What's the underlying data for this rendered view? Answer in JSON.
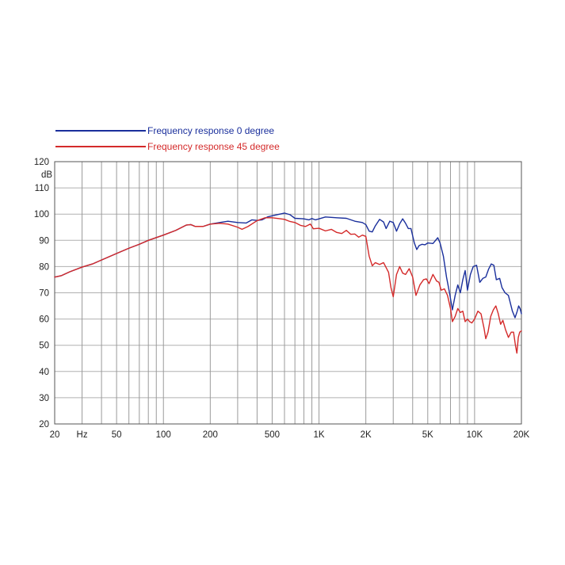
{
  "chart_data": {
    "type": "line",
    "title": "",
    "xlabel": "",
    "ylabel": "dB",
    "x_scale": "log",
    "xlim": [
      20,
      20000
    ],
    "ylim": [
      20,
      120
    ],
    "grid": true,
    "legend_position": "top-left",
    "y_ticks": [
      {
        "value": 20,
        "label": "20"
      },
      {
        "value": 30,
        "label": "30"
      },
      {
        "value": 40,
        "label": "40"
      },
      {
        "value": 50,
        "label": "50"
      },
      {
        "value": 60,
        "label": "60"
      },
      {
        "value": 70,
        "label": "70"
      },
      {
        "value": 80,
        "label": "80"
      },
      {
        "value": 90,
        "label": "90"
      },
      {
        "value": 100,
        "label": "100"
      },
      {
        "value": 110,
        "label": "110"
      },
      {
        "value": 120,
        "label": "120"
      }
    ],
    "x_ticks": [
      {
        "value": 20,
        "label": "20"
      },
      {
        "value": 30,
        "label": "Hz"
      },
      {
        "value": 50,
        "label": "50"
      },
      {
        "value": 100,
        "label": "100"
      },
      {
        "value": 200,
        "label": "200"
      },
      {
        "value": 500,
        "label": "500"
      },
      {
        "value": 1000,
        "label": "1K"
      },
      {
        "value": 2000,
        "label": "2K"
      },
      {
        "value": 5000,
        "label": "5K"
      },
      {
        "value": 10000,
        "label": "10K"
      },
      {
        "value": 20000,
        "label": "20K"
      }
    ],
    "x_gridlines": [
      20,
      30,
      40,
      50,
      60,
      70,
      80,
      90,
      100,
      200,
      300,
      400,
      500,
      600,
      700,
      800,
      900,
      1000,
      2000,
      3000,
      4000,
      5000,
      6000,
      7000,
      8000,
      9000,
      10000,
      20000
    ],
    "series": [
      {
        "name": "Frequency response 0 degree",
        "color": "#1a2f9c",
        "points": [
          [
            20,
            76
          ],
          [
            22,
            76.5
          ],
          [
            25,
            78
          ],
          [
            30,
            79.8
          ],
          [
            35,
            81
          ],
          [
            40,
            82.5
          ],
          [
            50,
            85
          ],
          [
            60,
            87
          ],
          [
            70,
            88.5
          ],
          [
            80,
            90
          ],
          [
            100,
            92
          ],
          [
            120,
            93.8
          ],
          [
            140,
            95.8
          ],
          [
            150,
            96
          ],
          [
            160,
            95.3
          ],
          [
            180,
            95.3
          ],
          [
            200,
            96.2
          ],
          [
            230,
            96.8
          ],
          [
            260,
            97.3
          ],
          [
            300,
            96.8
          ],
          [
            340,
            96.6
          ],
          [
            370,
            97.8
          ],
          [
            400,
            97.6
          ],
          [
            430,
            97.8
          ],
          [
            470,
            99
          ],
          [
            520,
            99.6
          ],
          [
            600,
            100.4
          ],
          [
            650,
            99.8
          ],
          [
            700,
            98.4
          ],
          [
            800,
            98.2
          ],
          [
            860,
            97.8
          ],
          [
            900,
            98.3
          ],
          [
            950,
            97.8
          ],
          [
            1000,
            98.2
          ],
          [
            1100,
            98.9
          ],
          [
            1300,
            98.6
          ],
          [
            1500,
            98.4
          ],
          [
            1700,
            97.3
          ],
          [
            1900,
            96.8
          ],
          [
            2000,
            96
          ],
          [
            2100,
            93.5
          ],
          [
            2200,
            93.2
          ],
          [
            2300,
            95.5
          ],
          [
            2450,
            98
          ],
          [
            2600,
            97
          ],
          [
            2700,
            94.5
          ],
          [
            2850,
            97.3
          ],
          [
            3000,
            96.8
          ],
          [
            3150,
            93.5
          ],
          [
            3300,
            96.3
          ],
          [
            3450,
            98.2
          ],
          [
            3600,
            96.5
          ],
          [
            3750,
            94.5
          ],
          [
            3900,
            94.5
          ],
          [
            4100,
            89
          ],
          [
            4250,
            86.5
          ],
          [
            4400,
            88
          ],
          [
            4600,
            88.5
          ],
          [
            4800,
            88.3
          ],
          [
            5000,
            89
          ],
          [
            5400,
            88.8
          ],
          [
            5800,
            91
          ],
          [
            6000,
            89
          ],
          [
            6300,
            84
          ],
          [
            6600,
            76
          ],
          [
            6900,
            70
          ],
          [
            7200,
            63.5
          ],
          [
            7500,
            69
          ],
          [
            7800,
            73
          ],
          [
            8100,
            70
          ],
          [
            8400,
            75
          ],
          [
            8700,
            78.5
          ],
          [
            9000,
            71
          ],
          [
            9400,
            77
          ],
          [
            9800,
            80
          ],
          [
            10300,
            80.5
          ],
          [
            10800,
            74
          ],
          [
            11300,
            75.5
          ],
          [
            11800,
            76
          ],
          [
            12300,
            79
          ],
          [
            12800,
            81
          ],
          [
            13300,
            80.5
          ],
          [
            13800,
            75
          ],
          [
            14500,
            75.5
          ],
          [
            15000,
            72
          ],
          [
            15700,
            70
          ],
          [
            16500,
            69
          ],
          [
            17500,
            63
          ],
          [
            18200,
            60.5
          ],
          [
            18800,
            63
          ],
          [
            19200,
            65
          ],
          [
            19600,
            64
          ],
          [
            20000,
            62
          ]
        ]
      },
      {
        "name": "Frequency response 45 degree",
        "color": "#d42a2a",
        "points": [
          [
            20,
            76
          ],
          [
            22,
            76.5
          ],
          [
            25,
            78
          ],
          [
            30,
            79.8
          ],
          [
            35,
            81
          ],
          [
            40,
            82.5
          ],
          [
            50,
            85
          ],
          [
            60,
            87
          ],
          [
            70,
            88.5
          ],
          [
            80,
            90
          ],
          [
            100,
            92
          ],
          [
            120,
            93.8
          ],
          [
            140,
            95.8
          ],
          [
            150,
            96
          ],
          [
            160,
            95.3
          ],
          [
            180,
            95.3
          ],
          [
            200,
            96.2
          ],
          [
            230,
            96.5
          ],
          [
            260,
            96.2
          ],
          [
            300,
            95
          ],
          [
            320,
            94.2
          ],
          [
            350,
            95.3
          ],
          [
            400,
            97.5
          ],
          [
            450,
            98.6
          ],
          [
            500,
            98.6
          ],
          [
            550,
            98.3
          ],
          [
            600,
            98
          ],
          [
            650,
            97.2
          ],
          [
            700,
            96.8
          ],
          [
            760,
            95.7
          ],
          [
            820,
            95.3
          ],
          [
            880,
            96.2
          ],
          [
            920,
            94.4
          ],
          [
            1000,
            94.6
          ],
          [
            1100,
            93.6
          ],
          [
            1200,
            94.2
          ],
          [
            1300,
            93
          ],
          [
            1400,
            92.6
          ],
          [
            1500,
            93.8
          ],
          [
            1600,
            92.3
          ],
          [
            1700,
            92.4
          ],
          [
            1800,
            91.2
          ],
          [
            1900,
            92
          ],
          [
            2000,
            91.5
          ],
          [
            2100,
            84
          ],
          [
            2200,
            80.3
          ],
          [
            2300,
            81.5
          ],
          [
            2450,
            80.8
          ],
          [
            2600,
            81.5
          ],
          [
            2800,
            77.8
          ],
          [
            2900,
            72
          ],
          [
            3000,
            68.5
          ],
          [
            3150,
            77
          ],
          [
            3300,
            80
          ],
          [
            3450,
            77.5
          ],
          [
            3600,
            77
          ],
          [
            3800,
            79.2
          ],
          [
            4000,
            76
          ],
          [
            4200,
            69
          ],
          [
            4450,
            73
          ],
          [
            4700,
            75
          ],
          [
            4900,
            75.3
          ],
          [
            5100,
            73.5
          ],
          [
            5400,
            77
          ],
          [
            5700,
            74.5
          ],
          [
            5900,
            74
          ],
          [
            6100,
            71
          ],
          [
            6400,
            71.5
          ],
          [
            6700,
            69
          ],
          [
            7000,
            64
          ],
          [
            7200,
            59
          ],
          [
            7500,
            61
          ],
          [
            7800,
            64
          ],
          [
            8100,
            62.5
          ],
          [
            8400,
            63
          ],
          [
            8700,
            59
          ],
          [
            9000,
            60
          ],
          [
            9300,
            59
          ],
          [
            9600,
            58.5
          ],
          [
            10000,
            60
          ],
          [
            10500,
            63
          ],
          [
            11000,
            62
          ],
          [
            11500,
            56.5
          ],
          [
            11800,
            52.5
          ],
          [
            12200,
            55
          ],
          [
            12700,
            61
          ],
          [
            13200,
            63.5
          ],
          [
            13700,
            65
          ],
          [
            14200,
            62
          ],
          [
            14700,
            58
          ],
          [
            15200,
            59.5
          ],
          [
            15800,
            56
          ],
          [
            16500,
            53
          ],
          [
            17200,
            55
          ],
          [
            17800,
            55
          ],
          [
            18300,
            50
          ],
          [
            18700,
            47
          ],
          [
            19100,
            53
          ],
          [
            19500,
            55
          ],
          [
            20000,
            55.5
          ]
        ]
      }
    ]
  }
}
